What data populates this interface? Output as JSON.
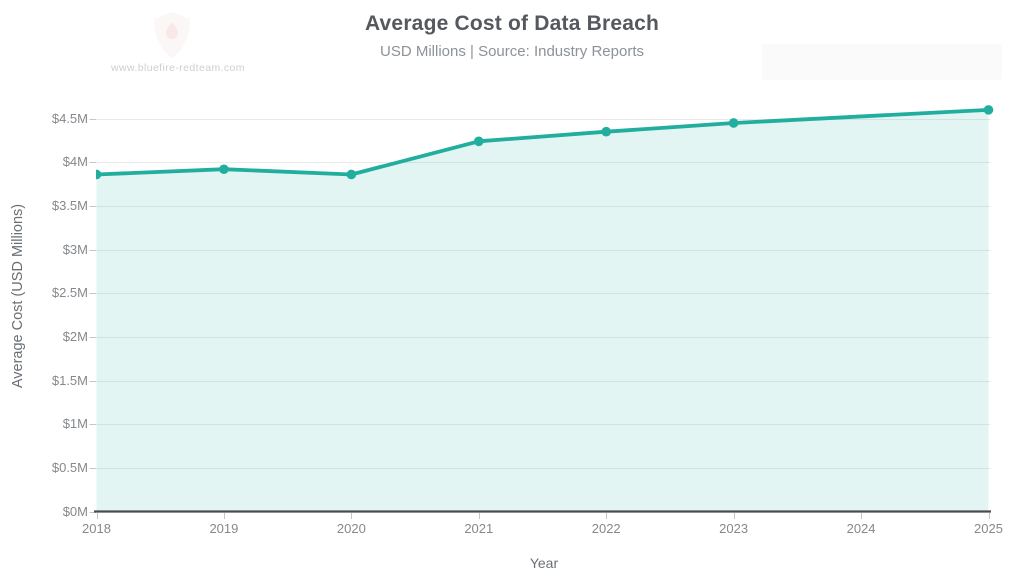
{
  "page": {
    "watermark_url": "www.bluefire-redteam.com"
  },
  "chart_data": {
    "type": "area",
    "title": "Average Cost of Data Breach",
    "subtitle": "USD Millions | Source: Industry Reports",
    "xlabel": "Year",
    "ylabel": "Average Cost (USD Millions)",
    "categories": [
      "2018",
      "2019",
      "2020",
      "2021",
      "2022",
      "2023",
      "2024",
      "2025"
    ],
    "series": [
      {
        "name": "Average Cost of Data Breach",
        "values": [
          3.86,
          3.92,
          3.86,
          4.24,
          4.35,
          4.45,
          null,
          4.6
        ]
      }
    ],
    "y_ticks": {
      "values": [
        0,
        0.5,
        1,
        1.5,
        2,
        2.5,
        3,
        3.5,
        4,
        4.5
      ],
      "labels": [
        "$0M",
        "$0.5M",
        "$1M",
        "$1.5M",
        "$2M",
        "$2.5M",
        "$3M",
        "$3.5M",
        "$4M",
        "$4.5M"
      ]
    },
    "ylim": [
      0,
      4.5
    ],
    "grid": true,
    "legend": false,
    "colors": {
      "line": "#22ae9f",
      "fill": "rgba(34,174,159,0.13)",
      "gridline": "#eaeaea",
      "axis": "#4c4c4c",
      "tick": "#c4c7c9"
    }
  }
}
